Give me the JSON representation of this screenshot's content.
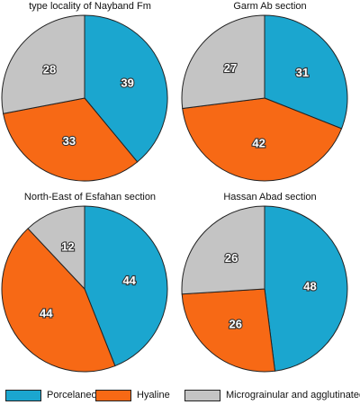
{
  "chart_data": [
    {
      "type": "pie",
      "title": "type locality of Nayband Fm",
      "series": [
        {
          "name": "Porcelaneous",
          "value": 39
        },
        {
          "name": "Hyaline",
          "value": 33
        },
        {
          "name": "Micrograinular and agglutinated",
          "value": 28
        }
      ]
    },
    {
      "type": "pie",
      "title": "Garm Ab section",
      "series": [
        {
          "name": "Porcelaneous",
          "value": 31
        },
        {
          "name": "Hyaline",
          "value": 42
        },
        {
          "name": "Micrograinular and agglutinated",
          "value": 27
        }
      ]
    },
    {
      "type": "pie",
      "title": "North-East of Esfahan section",
      "series": [
        {
          "name": "Porcelaneous",
          "value": 44
        },
        {
          "name": "Hyaline",
          "value": 44
        },
        {
          "name": "Micrograinular and agglutinated",
          "value": 12
        }
      ]
    },
    {
      "type": "pie",
      "title": "Hassan Abad section",
      "series": [
        {
          "name": "Porcelaneous",
          "value": 48
        },
        {
          "name": "Hyaline",
          "value": 26
        },
        {
          "name": "Micrograinular and agglutinated",
          "value": 26
        }
      ]
    }
  ],
  "legend": {
    "placement": "bottom",
    "items": [
      {
        "label": "Porcelaneous",
        "color": "#1ba6cf"
      },
      {
        "label": "Hyaline",
        "color": "#f76915"
      },
      {
        "label": "Micrograinular and agglutinated",
        "color": "#c4c4c4"
      }
    ]
  },
  "style": {
    "slice_outline": "#222222",
    "label_color": "#ffffff",
    "label_outline": "#333333",
    "start": "12 o'clock",
    "direction": "clockwise"
  }
}
